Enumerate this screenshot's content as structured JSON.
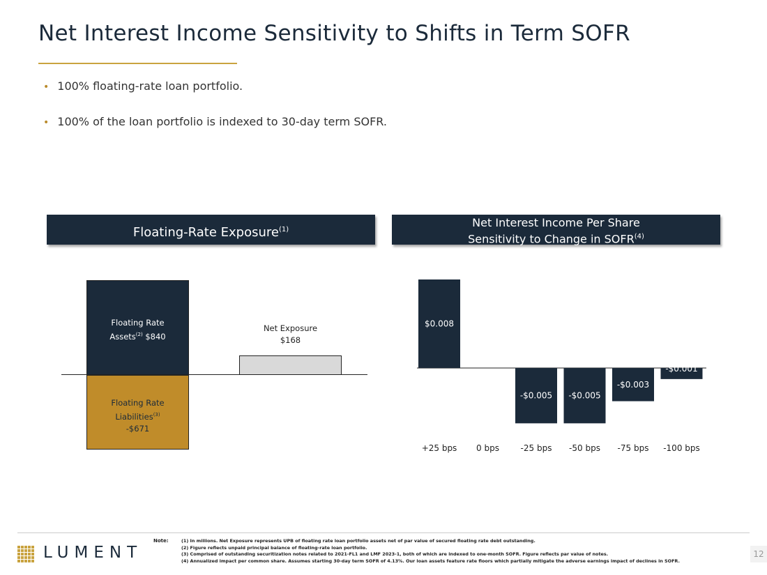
{
  "title": "Net Interest Income Sensitivity to Shifts in Term SOFR",
  "bullets": [
    "100% floating-rate loan portfolio.",
    "100% of the loan portfolio is indexed to 30-day term SOFR."
  ],
  "panel_left": {
    "title": "Floating-Rate Exposure",
    "sup": "(1)"
  },
  "panel_right": {
    "title_line1": "Net Interest Income Per Share",
    "title_line2": "Sensitivity to Change in SOFR",
    "sup": "(4)"
  },
  "colors": {
    "navy": "#1b2a3a",
    "gold": "#c08c2a",
    "gray": "#d9d9d9"
  },
  "chart_data": [
    {
      "type": "bar",
      "title": "Floating-Rate Exposure",
      "categories": [
        "Floating Rate Assets / Liabilities",
        "Net Exposure"
      ],
      "series": [
        {
          "name": "Floating Rate Assets",
          "values": [
            840,
            null
          ]
        },
        {
          "name": "Floating Rate Liabilities",
          "values": [
            -671,
            null
          ]
        },
        {
          "name": "Net Exposure",
          "values": [
            null,
            168
          ]
        }
      ],
      "labels": {
        "assets_line1": "Floating Rate",
        "assets_line2": "Assets",
        "assets_sup": "(2)",
        "assets_value": "$840",
        "liab_line1": "Floating Rate",
        "liab_line2": "Liabilities",
        "liab_sup": "(3)",
        "liab_value": "-$671",
        "net_line1": "Net Exposure",
        "net_value": "$168"
      }
    },
    {
      "type": "bar",
      "title": "Net Interest Income Per Share Sensitivity to Change in SOFR",
      "categories": [
        "+25 bps",
        "0 bps",
        "-25 bps",
        "-50 bps",
        "-75 bps",
        "-100 bps"
      ],
      "values": [
        0.008,
        0,
        -0.005,
        -0.005,
        -0.003,
        -0.001
      ],
      "data_labels": [
        "$0.008",
        "",
        "-$0.005",
        "-$0.005",
        "-$0.003",
        "-$0.001"
      ],
      "ylim": [
        -0.006,
        0.008
      ],
      "legend": "none",
      "grid": false
    }
  ],
  "footer": {
    "logo": "LUMENT",
    "note_label": "Note:",
    "notes": [
      "(1) In millions. Net Exposure represents UPB of floating rate loan portfolio assets net of par value of secured floating rate debt outstanding.",
      "(2) Figure reflects unpaid principal balance of floating-rate loan portfolio.",
      "(3) Comprised of outstanding securitization notes related to 2021-FL1 and LMF 2023-1, both of which are indexed to one-month SOFR. Figure reflects par value of notes.",
      "(4) Annualized impact per common share. Assumes starting 30-day term SOFR of 4.13%. Our loan assets feature rate floors which partially mitigate the adverse earnings impact of declines in SOFR."
    ],
    "page": "12"
  }
}
